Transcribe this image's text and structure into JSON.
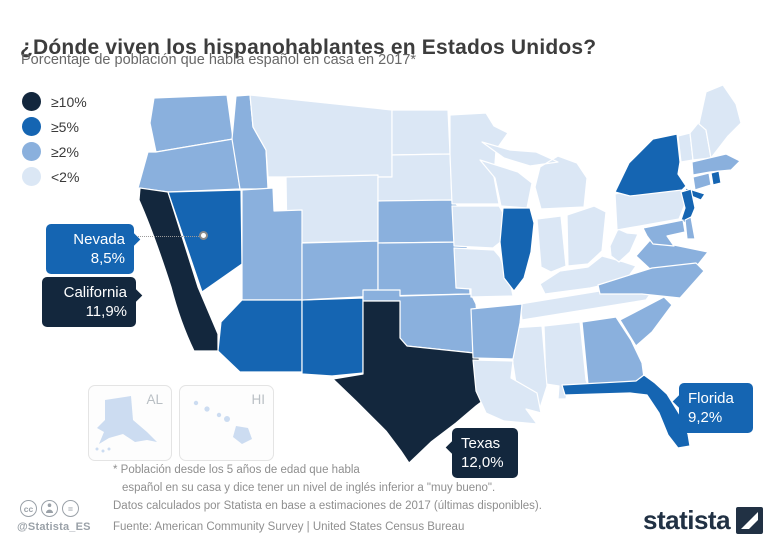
{
  "header": {
    "title": "¿Dónde viven los hispanohablantes en Estados Unidos?",
    "subtitle": "Porcentaje de población que habla español en casa en 2017*"
  },
  "legend": {
    "items": [
      {
        "label": "≥10%",
        "color": "#13273D"
      },
      {
        "label": "≥5%",
        "color": "#1565B2"
      },
      {
        "label": "≥2%",
        "color": "#8AB0DD"
      },
      {
        "label": "<2%",
        "color": "#DBE7F5"
      }
    ]
  },
  "callouts": [
    {
      "id": "nevada",
      "state": "Nevada",
      "value": "8,5%",
      "color": "#1565B2"
    },
    {
      "id": "california",
      "state": "California",
      "value": "11,9%",
      "color": "#13273D"
    },
    {
      "id": "texas",
      "state": "Texas",
      "value": "12,0%",
      "color": "#13273D"
    },
    {
      "id": "florida",
      "state": "Florida",
      "value": "9,2%",
      "color": "#1565B2"
    }
  ],
  "insets": [
    {
      "label": "AL"
    },
    {
      "label": "HI"
    }
  ],
  "footnotes": {
    "line1": "* Población desde los 5 años de edad que habla",
    "line2": "español en su casa y dice tener un nivel de inglés inferior a \"muy bueno\".",
    "line3": "Datos calculados por Statista en base a estimaciones de 2017 (últimas disponibles).",
    "source": "Fuente: American Community Survey | United States Census Bureau"
  },
  "footer": {
    "credit": "@Statista_ES",
    "cc_icons": [
      "cc",
      "by",
      "nd"
    ],
    "logo_text": "statista"
  },
  "chart_data": {
    "type": "choropleth_map",
    "title": "¿Dónde viven los hispanohablantes en Estados Unidos?",
    "metric": "Porcentaje de población que habla español en casa en 2017",
    "unit": "%",
    "legend_position": "top-left",
    "categories": [
      {
        "key": "ge10",
        "label": "≥10%",
        "color": "#13273D"
      },
      {
        "key": "ge5",
        "label": "≥5%",
        "color": "#1565B2"
      },
      {
        "key": "ge2",
        "label": "≥2%",
        "color": "#8AB0DD"
      },
      {
        "key": "lt2",
        "label": "<2%",
        "color": "#DBE7F5"
      }
    ],
    "labeled_values": [
      {
        "state": "Texas",
        "value": 12.0,
        "display": "12,0%"
      },
      {
        "state": "California",
        "value": 11.9,
        "display": "11,9%"
      },
      {
        "state": "Florida",
        "value": 9.2,
        "display": "9,2%"
      },
      {
        "state": "Nevada",
        "value": 8.5,
        "display": "8,5%"
      }
    ],
    "states": [
      {
        "id": "WA",
        "name": "Washington",
        "category": "ge2"
      },
      {
        "id": "OR",
        "name": "Oregon",
        "category": "ge2"
      },
      {
        "id": "CA",
        "name": "California",
        "category": "ge10"
      },
      {
        "id": "NV",
        "name": "Nevada",
        "category": "ge5"
      },
      {
        "id": "ID",
        "name": "Idaho",
        "category": "ge2"
      },
      {
        "id": "MT",
        "name": "Montana",
        "category": "lt2"
      },
      {
        "id": "WY",
        "name": "Wyoming",
        "category": "lt2"
      },
      {
        "id": "UT",
        "name": "Utah",
        "category": "ge2"
      },
      {
        "id": "AZ",
        "name": "Arizona",
        "category": "ge5"
      },
      {
        "id": "NM",
        "name": "New Mexico",
        "category": "ge5"
      },
      {
        "id": "CO",
        "name": "Colorado",
        "category": "ge2"
      },
      {
        "id": "ND",
        "name": "North Dakota",
        "category": "lt2"
      },
      {
        "id": "SD",
        "name": "South Dakota",
        "category": "lt2"
      },
      {
        "id": "NE",
        "name": "Nebraska",
        "category": "ge2"
      },
      {
        "id": "KS",
        "name": "Kansas",
        "category": "ge2"
      },
      {
        "id": "OK",
        "name": "Oklahoma",
        "category": "ge2"
      },
      {
        "id": "TX",
        "name": "Texas",
        "category": "ge10"
      },
      {
        "id": "MN",
        "name": "Minnesota",
        "category": "lt2"
      },
      {
        "id": "IA",
        "name": "Iowa",
        "category": "lt2"
      },
      {
        "id": "MO",
        "name": "Missouri",
        "category": "lt2"
      },
      {
        "id": "WI",
        "name": "Wisconsin",
        "category": "lt2"
      },
      {
        "id": "IL",
        "name": "Illinois",
        "category": "ge5"
      },
      {
        "id": "MI",
        "name": "Michigan",
        "category": "lt2"
      },
      {
        "id": "IN",
        "name": "Indiana",
        "category": "lt2"
      },
      {
        "id": "OH",
        "name": "Ohio",
        "category": "lt2"
      },
      {
        "id": "KY",
        "name": "Kentucky",
        "category": "lt2"
      },
      {
        "id": "TN",
        "name": "Tennessee",
        "category": "lt2"
      },
      {
        "id": "WV",
        "name": "West Virginia",
        "category": "lt2"
      },
      {
        "id": "VA",
        "name": "Virginia",
        "category": "ge2"
      },
      {
        "id": "NC",
        "name": "North Carolina",
        "category": "ge2"
      },
      {
        "id": "SC",
        "name": "South Carolina",
        "category": "ge2"
      },
      {
        "id": "GA",
        "name": "Georgia",
        "category": "ge2"
      },
      {
        "id": "AL",
        "name": "Alabama",
        "category": "lt2"
      },
      {
        "id": "MS",
        "name": "Mississippi",
        "category": "lt2"
      },
      {
        "id": "AR",
        "name": "Arkansas",
        "category": "ge2"
      },
      {
        "id": "LA",
        "name": "Louisiana",
        "category": "lt2"
      },
      {
        "id": "FL",
        "name": "Florida",
        "category": "ge5"
      },
      {
        "id": "PA",
        "name": "Pennsylvania",
        "category": "lt2"
      },
      {
        "id": "NY",
        "name": "New York",
        "category": "ge5"
      },
      {
        "id": "NJ",
        "name": "New Jersey",
        "category": "ge5"
      },
      {
        "id": "MD",
        "name": "Maryland",
        "category": "ge2"
      },
      {
        "id": "DE",
        "name": "Delaware",
        "category": "ge2"
      },
      {
        "id": "VT",
        "name": "Vermont",
        "category": "lt2"
      },
      {
        "id": "NH",
        "name": "New Hampshire",
        "category": "lt2"
      },
      {
        "id": "ME",
        "name": "Maine",
        "category": "lt2"
      },
      {
        "id": "MA",
        "name": "Massachusetts",
        "category": "ge2"
      },
      {
        "id": "RI",
        "name": "Rhode Island",
        "category": "ge5"
      },
      {
        "id": "CT",
        "name": "Connecticut",
        "category": "ge2"
      },
      {
        "id": "AK",
        "name": "Alaska",
        "category": "lt2"
      },
      {
        "id": "HI",
        "name": "Hawaii",
        "category": "lt2"
      }
    ]
  }
}
